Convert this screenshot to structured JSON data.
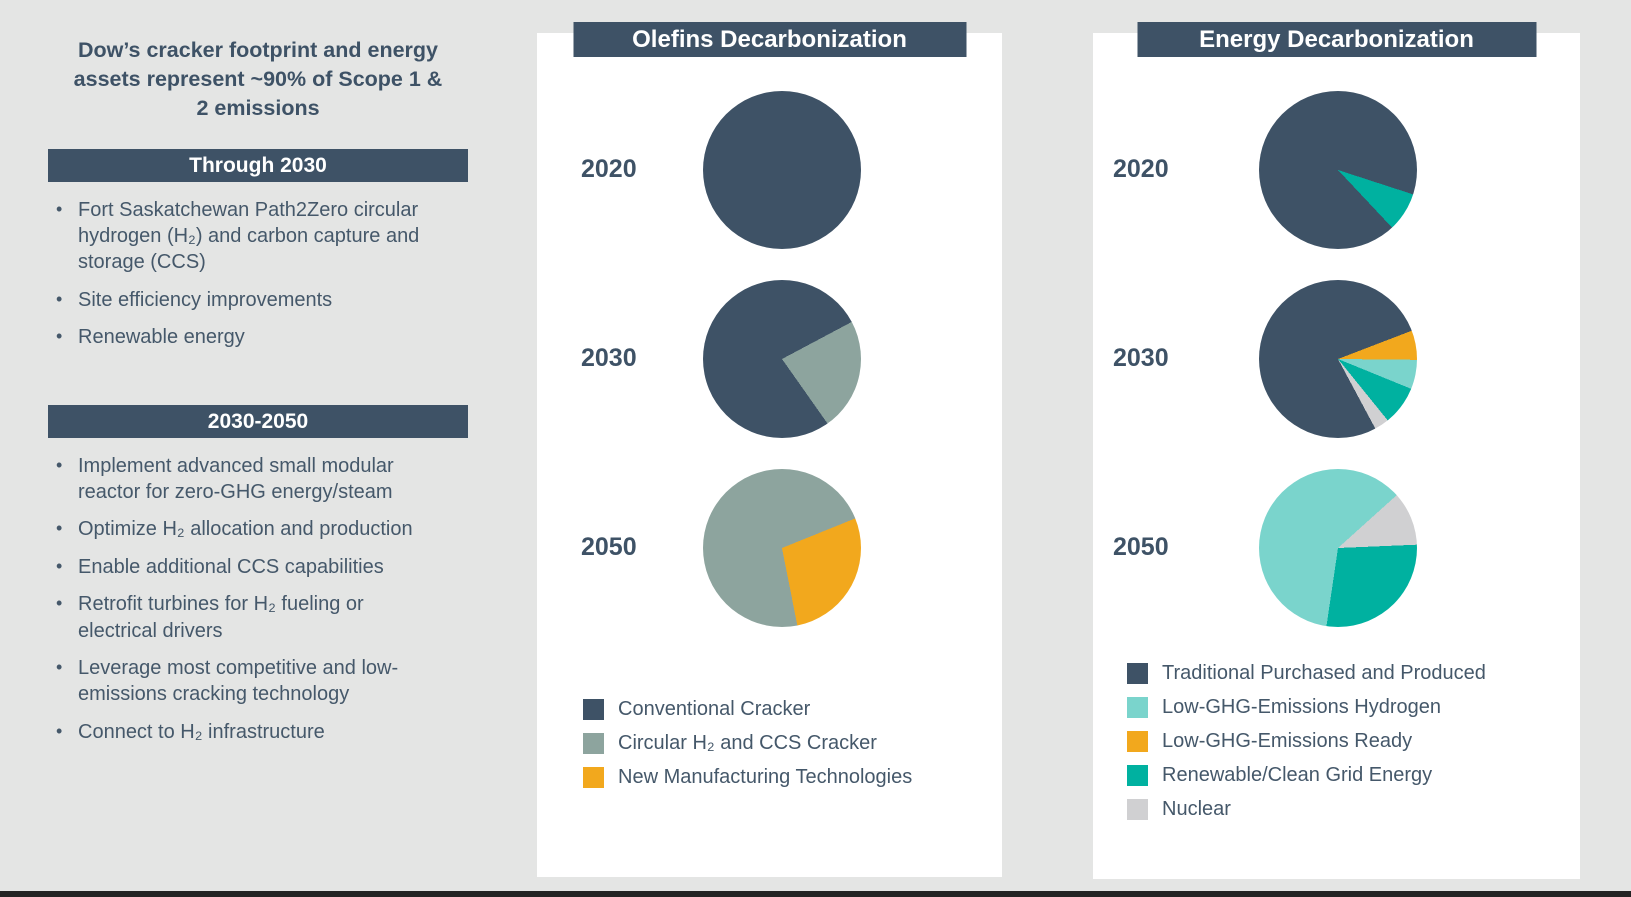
{
  "colors": {
    "page_bg": "#e4e5e4",
    "card_bg": "#ffffff",
    "accent_dark": "#3e5266",
    "body_text": "#45586a",
    "footer_bar": "#232323"
  },
  "left_panel": {
    "title": "Dow’s cracker footprint and energy assets represent ~90% of Scope 1 & 2 emissions",
    "sections": [
      {
        "heading": "Through 2030",
        "items": [
          "Fort Saskatchewan Path2Zero circular hydrogen (H₂) and carbon capture and storage (CCS)",
          "Site efficiency improvements",
          "Renewable energy"
        ]
      },
      {
        "heading": "2030-2050",
        "items": [
          "Implement advanced small modular reactor for zero-GHG energy/steam",
          "Optimize H₂ allocation and production",
          "Enable additional CCS capabilities",
          "Retrofit turbines for H₂ fueling or electrical drivers",
          "Leverage most competitive and low-emissions cracking technology",
          "Connect to H₂ infrastructure"
        ]
      }
    ]
  },
  "chart_data": [
    {
      "type": "pie",
      "title": "Olefins Decarbonization",
      "legend_position": "bottom",
      "legend": [
        {
          "key": "conventional",
          "label": "Conventional Cracker",
          "color": "#3e5266"
        },
        {
          "key": "circular",
          "label": "Circular H₂ and CCS Cracker",
          "color": "#8da49e"
        },
        {
          "key": "new_tech",
          "label": "New Manufacturing Technologies",
          "color": "#f2a81d"
        }
      ],
      "pies": [
        {
          "year": "2020",
          "start_deg": 0,
          "slices": [
            {
              "key": "conventional",
              "pct": 100
            }
          ]
        },
        {
          "year": "2030",
          "start_deg": 62,
          "slices": [
            {
              "key": "circular",
              "pct": 23
            },
            {
              "key": "conventional",
              "pct": 77
            }
          ]
        },
        {
          "year": "2050",
          "start_deg": 68,
          "slices": [
            {
              "key": "new_tech",
              "pct": 28
            },
            {
              "key": "circular",
              "pct": 72
            }
          ]
        }
      ]
    },
    {
      "type": "pie",
      "title": "Energy Decarbonization",
      "legend_position": "bottom",
      "legend": [
        {
          "key": "traditional",
          "label": "Traditional Purchased and Produced",
          "color": "#3e5266"
        },
        {
          "key": "hydrogen",
          "label": "Low-GHG-Emissions Hydrogen",
          "color": "#7ad4cc"
        },
        {
          "key": "ready",
          "label": "Low-GHG-Emissions Ready",
          "color": "#f2a81d"
        },
        {
          "key": "renewable",
          "label": "Renewable/Clean Grid Energy",
          "color": "#00b1a0"
        },
        {
          "key": "nuclear",
          "label": "Nuclear",
          "color": "#d0d0d2"
        }
      ],
      "pies": [
        {
          "year": "2020",
          "start_deg": 108,
          "slices": [
            {
              "key": "renewable",
              "pct": 8
            },
            {
              "key": "traditional",
              "pct": 92
            }
          ]
        },
        {
          "year": "2030",
          "start_deg": 69,
          "slices": [
            {
              "key": "ready",
              "pct": 6
            },
            {
              "key": "hydrogen",
              "pct": 6
            },
            {
              "key": "renewable",
              "pct": 8
            },
            {
              "key": "nuclear",
              "pct": 3
            },
            {
              "key": "traditional",
              "pct": 77
            }
          ]
        },
        {
          "year": "2050",
          "start_deg": 48,
          "slices": [
            {
              "key": "nuclear",
              "pct": 11
            },
            {
              "key": "renewable",
              "pct": 28
            },
            {
              "key": "hydrogen",
              "pct": 61
            }
          ]
        }
      ]
    }
  ]
}
